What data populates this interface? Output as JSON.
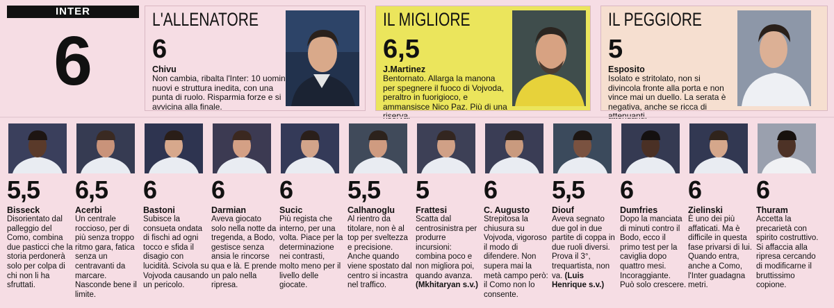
{
  "team": {
    "label": "INTER",
    "grade": "6"
  },
  "coach": {
    "title": "L'ALLENATORE",
    "grade": "6",
    "name": "Chivu",
    "text": "Non cambia, ribalta l'Inter: 10 uomini nuovi e struttura inedita, con una punta di ruolo. Risparmia forze e si avvicina alla finale."
  },
  "best": {
    "title": "IL MIGLIORE",
    "grade": "6,5",
    "name": "J.Martinez",
    "text": "Bentornato. Allarga la manona per spegnere il fuoco di Vojvoda, peraltro in fuorigioco, e ammansisce Nico Paz. Più di una riserva."
  },
  "worst": {
    "title": "IL PEGGIORE",
    "grade": "5",
    "name": "Esposito",
    "text": "Isolato e stritolato, non si divincola fronte alla porta e non vince mai un duello. La serata è negativa, anche se ricca di attenuanti."
  },
  "players": [
    {
      "grade": "5,5",
      "name": "Bisseck",
      "text": "Disorientato dal palleggio del Como, combina due pasticci che la storia perdonerà solo per colpa di chi non li ha sfruttati."
    },
    {
      "grade": "6,5",
      "name": "Acerbi",
      "text": "Un centrale roccioso, per di più senza troppo ritmo gara, fatica senza un centravanti da marcare. Nasconde bene il limite."
    },
    {
      "grade": "6",
      "name": "Bastoni",
      "text": "Subisce la consueta ondata di fischi ad ogni tocco e sfida il disagio con lucidità. Scivola su Vojvoda causando un pericolo."
    },
    {
      "grade": "6",
      "name": "Darmian",
      "text": "Aveva giocato solo nella notte da tregenda, a Bodo, gestisce senza ansia le rincorse qua e là. E prende un palo nella ripresa."
    },
    {
      "grade": "6",
      "name": "Sucic",
      "text": "Più regista che interno, per una volta. Piace per la determinazione nei contrasti, molto meno per il livello delle giocate."
    },
    {
      "grade": "5,5",
      "name": "Calhanoglu",
      "text": "Al rientro da titolare, non è al top per sveltezza e precisione. Anche quando viene spostato dal centro si incastra nel traffico."
    },
    {
      "grade": "5",
      "name": "Frattesi",
      "text": "Scatta dal centrosinistra per produrre incursioni: combina poco e non migliora poi, quando avanza.",
      "sub_name": "Mkhitaryan",
      "sub_grade": "s.v."
    },
    {
      "grade": "6",
      "name": "C. Augusto",
      "text": "Strepitosa la chiusura su Vojvoda, vigoroso il modo di difendere. Non supera mai la metà campo però: il Como non lo consente."
    },
    {
      "grade": "5,5",
      "name": "Diouf",
      "text": "Aveva segnato due gol in due partite di coppa in due ruoli diversi. Prova il 3°, trequartista, non va.",
      "sub_name": "Luis Henrique",
      "sub_grade": "s.v."
    },
    {
      "grade": "6",
      "name": "Dumfries",
      "text": "Dopo la manciata di minuti contro il Bodo, ecco il primo test per la caviglia dopo quattro mesi. Incoraggiante. Può solo crescere."
    },
    {
      "grade": "6",
      "name": "Zielinski",
      "text": "È uno dei più affaticati. Ma è difficile in questa fase privarsi di lui. Quando entra, anche a Como, l'Inter guadagna metri."
    },
    {
      "grade": "6",
      "name": "Thuram",
      "text": "Accetta la precarietà con spirito costruttivo. Si affaccia alla ripresa cercando di modificarne il bruttissimo copione."
    }
  ],
  "colors": {
    "best_bg": "#ebe55c",
    "worst_bg": "#f6dfd0",
    "page_bg": "#f6dde4"
  }
}
